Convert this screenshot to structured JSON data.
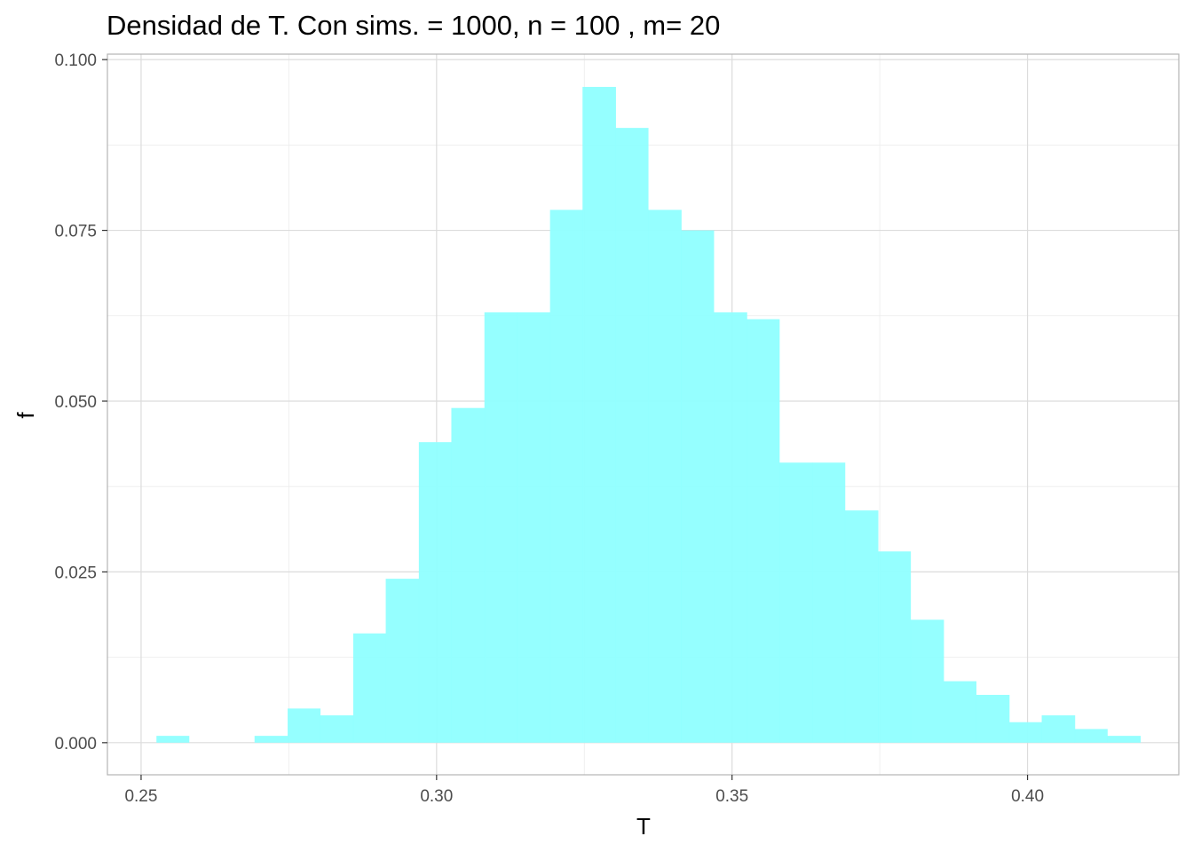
{
  "chart_data": {
    "type": "bar",
    "subtype": "histogram",
    "title": "Densidad de T. Con  sims. = 1000, n = 100 , m= 20",
    "xlabel": "T",
    "ylabel": "f",
    "xlim": [
      0.2443,
      0.4256
    ],
    "ylim": [
      -0.0047,
      0.1008
    ],
    "xticks": [
      0.25,
      0.3,
      0.35,
      0.4
    ],
    "xtick_labels": [
      "0.25",
      "0.30",
      "0.35",
      "0.40"
    ],
    "yticks": [
      0.0,
      0.025,
      0.05,
      0.075,
      0.1
    ],
    "ytick_labels": [
      "0.000",
      "0.025",
      "0.050",
      "0.075",
      "0.100"
    ],
    "grid": true,
    "bar_color": "#8fffff",
    "bins": [
      {
        "x0": 0.2526,
        "x1": 0.2581,
        "value": 0.001
      },
      {
        "x0": 0.2581,
        "x1": 0.2637,
        "value": 0.0
      },
      {
        "x0": 0.2637,
        "x1": 0.2692,
        "value": 0.0
      },
      {
        "x0": 0.2692,
        "x1": 0.2748,
        "value": 0.001
      },
      {
        "x0": 0.2748,
        "x1": 0.2803,
        "value": 0.005
      },
      {
        "x0": 0.2803,
        "x1": 0.2859,
        "value": 0.004
      },
      {
        "x0": 0.2859,
        "x1": 0.2914,
        "value": 0.016
      },
      {
        "x0": 0.2914,
        "x1": 0.297,
        "value": 0.024
      },
      {
        "x0": 0.297,
        "x1": 0.3025,
        "value": 0.044
      },
      {
        "x0": 0.3025,
        "x1": 0.3081,
        "value": 0.049
      },
      {
        "x0": 0.3081,
        "x1": 0.3136,
        "value": 0.063
      },
      {
        "x0": 0.3136,
        "x1": 0.3192,
        "value": 0.063
      },
      {
        "x0": 0.3192,
        "x1": 0.3247,
        "value": 0.078
      },
      {
        "x0": 0.3247,
        "x1": 0.3303,
        "value": 0.096
      },
      {
        "x0": 0.3303,
        "x1": 0.3358,
        "value": 0.09
      },
      {
        "x0": 0.3358,
        "x1": 0.3414,
        "value": 0.078
      },
      {
        "x0": 0.3414,
        "x1": 0.3469,
        "value": 0.075
      },
      {
        "x0": 0.3469,
        "x1": 0.3525,
        "value": 0.063
      },
      {
        "x0": 0.3525,
        "x1": 0.358,
        "value": 0.062
      },
      {
        "x0": 0.358,
        "x1": 0.3636,
        "value": 0.041
      },
      {
        "x0": 0.3636,
        "x1": 0.3691,
        "value": 0.041
      },
      {
        "x0": 0.3691,
        "x1": 0.3747,
        "value": 0.034
      },
      {
        "x0": 0.3747,
        "x1": 0.3802,
        "value": 0.028
      },
      {
        "x0": 0.3802,
        "x1": 0.3858,
        "value": 0.018
      },
      {
        "x0": 0.3858,
        "x1": 0.3913,
        "value": 0.009
      },
      {
        "x0": 0.3913,
        "x1": 0.3969,
        "value": 0.007
      },
      {
        "x0": 0.3969,
        "x1": 0.4024,
        "value": 0.003
      },
      {
        "x0": 0.4024,
        "x1": 0.408,
        "value": 0.004
      },
      {
        "x0": 0.408,
        "x1": 0.4135,
        "value": 0.002
      },
      {
        "x0": 0.4135,
        "x1": 0.4191,
        "value": 0.001
      }
    ]
  }
}
